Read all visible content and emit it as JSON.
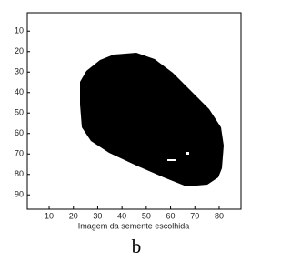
{
  "chart_data": {
    "type": "image",
    "xlabel": "Imagem da semente escolhida",
    "caption": "b",
    "xlim": [
      1,
      89
    ],
    "ylim": [
      1,
      97
    ],
    "xticks": [
      10,
      20,
      30,
      40,
      50,
      60,
      70,
      80
    ],
    "yticks": [
      10,
      20,
      30,
      40,
      50,
      60,
      70,
      80,
      90
    ]
  }
}
